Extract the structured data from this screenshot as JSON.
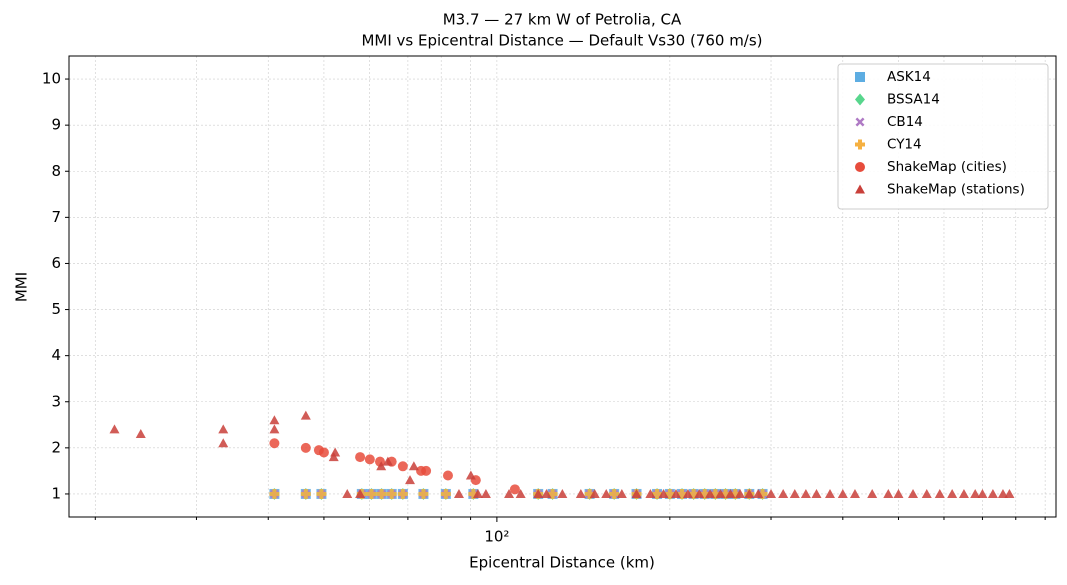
{
  "chart_data": {
    "type": "scatter",
    "title": "M3.7 — 27 km W of Petrolia, CA",
    "subtitle": "MMI vs Epicentral Distance — Default Vs30 (760 m/s)",
    "x_label": "Epicentral Distance (km)",
    "y_label": "MMI",
    "x_scale": "log",
    "xlim": [
      18,
      940
    ],
    "xticks": [
      {
        "value": 100,
        "label": "10²"
      }
    ],
    "xminor_ticks": [
      20,
      30,
      40,
      50,
      60,
      70,
      80,
      90,
      200,
      300,
      400,
      500,
      600,
      700,
      800,
      900
    ],
    "ylim": [
      0.5,
      10.5
    ],
    "yticks": [
      1,
      2,
      3,
      4,
      5,
      6,
      7,
      8,
      9,
      10
    ],
    "grid": true,
    "legend": "upper right",
    "series": [
      {
        "name": "ASK14",
        "color": "#5dade2",
        "marker": "s",
        "x": [
          41,
          46.5,
          49.5,
          58.2,
          60.5,
          63,
          65.6,
          68.6,
          74.5,
          81.5,
          91,
          118,
          125,
          145,
          160,
          175,
          190,
          200,
          210,
          220,
          230,
          240,
          250,
          260,
          275,
          290
        ],
        "values": [
          1,
          1,
          1,
          1,
          1,
          1,
          1,
          1,
          1,
          1,
          1,
          1,
          1,
          1,
          1,
          1,
          1,
          1,
          1,
          1,
          1,
          1,
          1,
          1,
          1,
          1
        ]
      },
      {
        "name": "BSSA14",
        "color": "#58d68d",
        "marker": "D",
        "x": [
          41,
          46.5,
          49.5,
          58.2,
          60.5,
          63,
          65.6,
          68.6,
          74.5,
          81.5,
          91,
          118,
          125,
          145,
          160,
          175,
          190,
          200,
          210,
          220,
          230,
          240,
          250,
          260,
          275,
          290
        ],
        "values": [
          1,
          1,
          1,
          1,
          1,
          1,
          1,
          1,
          1,
          1,
          1,
          1,
          1,
          1,
          1,
          1,
          1,
          1,
          1,
          1,
          1,
          1,
          1,
          1,
          1,
          1
        ]
      },
      {
        "name": "CB14",
        "color": "#af7ac5",
        "marker": "X",
        "x": [
          41,
          46.5,
          49.5,
          58.2,
          60.5,
          63,
          65.6,
          68.6,
          74.5,
          81.5,
          91,
          118,
          125,
          145,
          160,
          175,
          190,
          200,
          210,
          220,
          230,
          240,
          250,
          260,
          275,
          290
        ],
        "values": [
          1,
          1,
          1,
          1,
          1,
          1,
          1,
          1,
          1,
          1,
          1,
          1,
          1,
          1,
          1,
          1,
          1,
          1,
          1,
          1,
          1,
          1,
          1,
          1,
          1,
          1
        ]
      },
      {
        "name": "CY14",
        "color": "#f5b041",
        "marker": "P",
        "x": [
          41,
          46.5,
          49.5,
          58.2,
          60.5,
          63,
          65.6,
          68.6,
          74.5,
          81.5,
          91,
          118,
          125,
          145,
          160,
          175,
          190,
          200,
          210,
          220,
          230,
          240,
          250,
          260,
          275,
          290
        ],
        "values": [
          1,
          1,
          1,
          1,
          1,
          1,
          1,
          1,
          1,
          1,
          1,
          1,
          1,
          1,
          1,
          1,
          1,
          1,
          1,
          1,
          1,
          1,
          1,
          1,
          1,
          1
        ]
      },
      {
        "name": "ShakeMap (cities)",
        "color": "#e74c3c",
        "marker": "o",
        "x": [
          41,
          46.5,
          49,
          50,
          57.8,
          60.1,
          62.6,
          65.6,
          68.6,
          73.8,
          75.3,
          82.2,
          91.9,
          107.5
        ],
        "values": [
          2.1,
          2.0,
          1.95,
          1.9,
          1.8,
          1.75,
          1.7,
          1.7,
          1.6,
          1.5,
          1.5,
          1.4,
          1.3,
          1.1
        ]
      },
      {
        "name": "ShakeMap (stations)",
        "color": "#c9403a",
        "marker": "^",
        "x": [
          21.6,
          24,
          33.4,
          33.4,
          41,
          41,
          46.5,
          52.3,
          52,
          54.9,
          57.8,
          62.9,
          64.6,
          70.6,
          71.7,
          85.9,
          90.1,
          92.7,
          95.7,
          105,
          110,
          118,
          122,
          130,
          140,
          148,
          155,
          165,
          175,
          185,
          195,
          205,
          215,
          225,
          235,
          245,
          255,
          265,
          275,
          285,
          300,
          315,
          330,
          345,
          360,
          380,
          400,
          420,
          450,
          480,
          500,
          530,
          560,
          590,
          620,
          650,
          680,
          700,
          730,
          760,
          780
        ],
        "values": [
          2.4,
          2.3,
          2.4,
          2.1,
          2.6,
          2.4,
          2.7,
          1.9,
          1.8,
          1.0,
          1.0,
          1.6,
          1.7,
          1.3,
          1.6,
          1.0,
          1.4,
          1.0,
          1.0,
          1,
          1,
          1,
          1,
          1,
          1,
          1,
          1,
          1,
          1,
          1,
          1,
          1,
          1,
          1,
          1,
          1,
          1,
          1,
          1,
          1,
          1,
          1,
          1,
          1,
          1,
          1,
          1,
          1,
          1,
          1,
          1,
          1,
          1,
          1,
          1,
          1,
          1,
          1,
          1,
          1,
          1
        ]
      }
    ]
  }
}
